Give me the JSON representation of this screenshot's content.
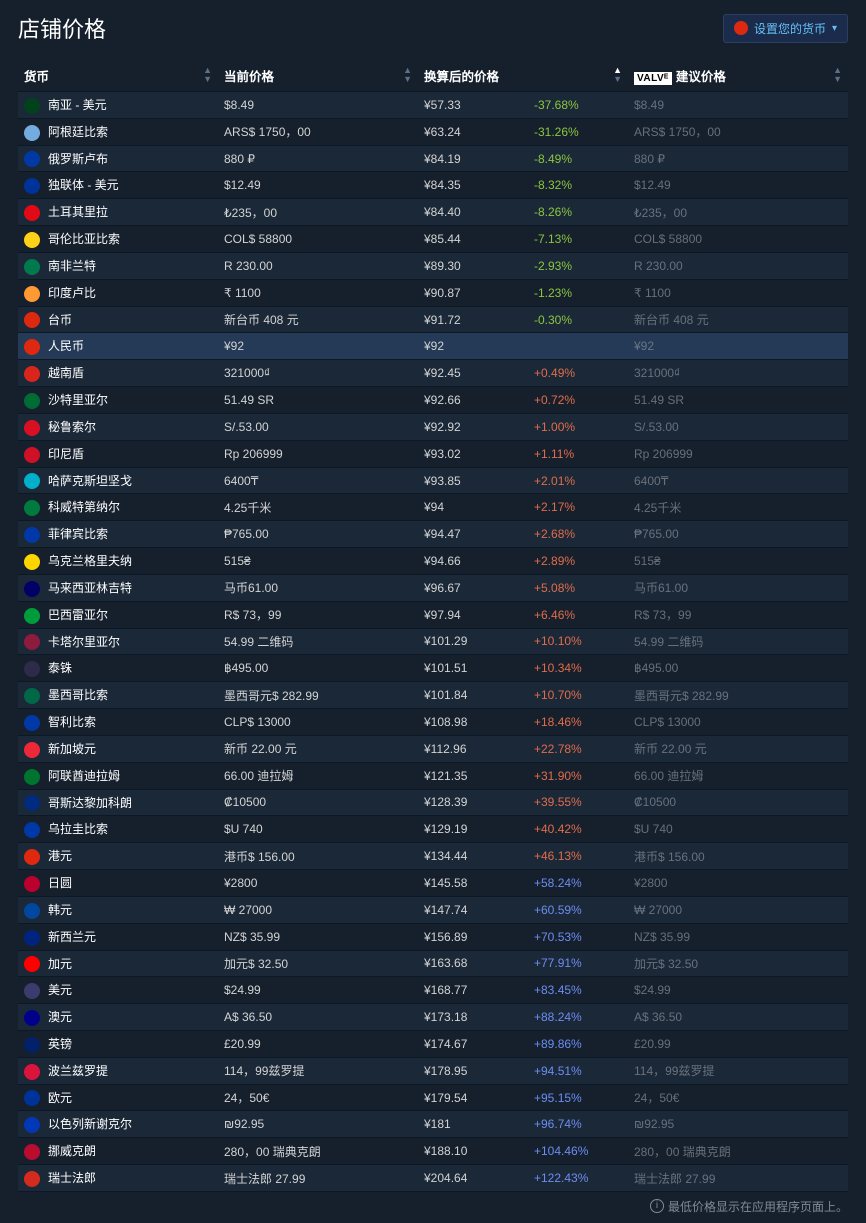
{
  "title": "店铺价格",
  "setCurrencyBtn": "设置您的货币",
  "columns": {
    "currency": "货币",
    "current": "当前价格",
    "converted": "换算后的价格",
    "suggestedPrefix": "VALVᴱ",
    "suggested": "建议价格"
  },
  "footer": "最低价格显示在应用程序页面上。",
  "colors": {
    "neg": "#8bc53f",
    "pos_low": "#e06c4a",
    "pos_mid": "#e06c4a",
    "pos_high": "#6b8df2"
  },
  "rows": [
    {
      "flag": "#01411c",
      "name": "南亚 - 美元",
      "current": "$8.49",
      "converted": "¥57.33",
      "pct": "-37.68%",
      "pctColor": "neg",
      "suggested": "$8.49"
    },
    {
      "flag": "#74acdf",
      "name": "阿根廷比索",
      "current": "ARS$ 1750，00",
      "converted": "¥63.24",
      "pct": "-31.26%",
      "pctColor": "neg",
      "suggested": "ARS$ 1750，00"
    },
    {
      "flag": "#0039a6",
      "name": "俄罗斯卢布",
      "current": "880 ₽",
      "converted": "¥84.19",
      "pct": "-8.49%",
      "pctColor": "neg",
      "suggested": "880 ₽"
    },
    {
      "flag": "#003399",
      "name": "独联体 - 美元",
      "current": "$12.49",
      "converted": "¥84.35",
      "pct": "-8.32%",
      "pctColor": "neg",
      "suggested": "$12.49"
    },
    {
      "flag": "#e30a17",
      "name": "土耳其里拉",
      "current": "₺235，00",
      "converted": "¥84.40",
      "pct": "-8.26%",
      "pctColor": "neg",
      "suggested": "₺235，00"
    },
    {
      "flag": "#fcd116",
      "name": "哥伦比亚比索",
      "current": "COL$ 58800",
      "converted": "¥85.44",
      "pct": "-7.13%",
      "pctColor": "neg",
      "suggested": "COL$ 58800"
    },
    {
      "flag": "#007a4d",
      "name": "南非兰特",
      "current": "R 230.00",
      "converted": "¥89.30",
      "pct": "-2.93%",
      "pctColor": "neg",
      "suggested": "R 230.00"
    },
    {
      "flag": "#ff9933",
      "name": "印度卢比",
      "current": "₹ 1100",
      "converted": "¥90.87",
      "pct": "-1.23%",
      "pctColor": "neg",
      "suggested": "₹ 1100"
    },
    {
      "flag": "#de2910",
      "name": "台币",
      "current": "新台币 408 元",
      "converted": "¥91.72",
      "pct": "-0.30%",
      "pctColor": "neg",
      "suggested": "新台币 408 元"
    },
    {
      "flag": "#de2910",
      "name": "人民币",
      "current": "¥92",
      "converted": "¥92",
      "pct": "",
      "pctColor": "",
      "suggested": "¥92",
      "highlight": true
    },
    {
      "flag": "#da251d",
      "name": "越南盾",
      "current": "321000₫",
      "converted": "¥92.45",
      "pct": "+0.49%",
      "pctColor": "pos_low",
      "suggested": "321000₫"
    },
    {
      "flag": "#006c35",
      "name": "沙特里亚尔",
      "current": "51.49 SR",
      "converted": "¥92.66",
      "pct": "+0.72%",
      "pctColor": "pos_low",
      "suggested": "51.49 SR"
    },
    {
      "flag": "#d91023",
      "name": "秘鲁索尔",
      "current": "S/.53.00",
      "converted": "¥92.92",
      "pct": "+1.00%",
      "pctColor": "pos_low",
      "suggested": "S/.53.00"
    },
    {
      "flag": "#ce1126",
      "name": "印尼盾",
      "current": "Rp 206999",
      "converted": "¥93.02",
      "pct": "+1.11%",
      "pctColor": "pos_low",
      "suggested": "Rp 206999"
    },
    {
      "flag": "#00afca",
      "name": "哈萨克斯坦坚戈",
      "current": "6400₸",
      "converted": "¥93.85",
      "pct": "+2.01%",
      "pctColor": "pos_low",
      "suggested": "6400₸"
    },
    {
      "flag": "#007a3d",
      "name": "科威特第纳尔",
      "current": "4.25千米",
      "converted": "¥94",
      "pct": "+2.17%",
      "pctColor": "pos_low",
      "suggested": "4.25千米"
    },
    {
      "flag": "#0038a8",
      "name": "菲律宾比索",
      "current": "₱765.00",
      "converted": "¥94.47",
      "pct": "+2.68%",
      "pctColor": "pos_low",
      "suggested": "₱765.00"
    },
    {
      "flag": "#ffd500",
      "name": "乌克兰格里夫纳",
      "current": "515₴",
      "converted": "¥94.66",
      "pct": "+2.89%",
      "pctColor": "pos_low",
      "suggested": "515₴"
    },
    {
      "flag": "#010066",
      "name": "马来西亚林吉特",
      "current": "马币61.00",
      "converted": "¥96.67",
      "pct": "+5.08%",
      "pctColor": "pos_mid",
      "suggested": "马币61.00"
    },
    {
      "flag": "#009c3b",
      "name": "巴西雷亚尔",
      "current": "R$ 73，99",
      "converted": "¥97.94",
      "pct": "+6.46%",
      "pctColor": "pos_mid",
      "suggested": "R$ 73，99"
    },
    {
      "flag": "#8d1b3d",
      "name": "卡塔尔里亚尔",
      "current": "54.99 二维码",
      "converted": "¥101.29",
      "pct": "+10.10%",
      "pctColor": "pos_mid",
      "suggested": "54.99 二维码"
    },
    {
      "flag": "#2d2a4a",
      "name": "泰铢",
      "current": "฿495.00",
      "converted": "¥101.51",
      "pct": "+10.34%",
      "pctColor": "pos_mid",
      "suggested": "฿495.00"
    },
    {
      "flag": "#006847",
      "name": "墨西哥比索",
      "current": "墨西哥元$ 282.99",
      "converted": "¥101.84",
      "pct": "+10.70%",
      "pctColor": "pos_mid",
      "suggested": "墨西哥元$ 282.99"
    },
    {
      "flag": "#0039a6",
      "name": "智利比索",
      "current": "CLP$ 13000",
      "converted": "¥108.98",
      "pct": "+18.46%",
      "pctColor": "pos_mid",
      "suggested": "CLP$ 13000"
    },
    {
      "flag": "#ed2939",
      "name": "新加坡元",
      "current": "新币 22.00 元",
      "converted": "¥112.96",
      "pct": "+22.78%",
      "pctColor": "pos_mid",
      "suggested": "新币 22.00 元"
    },
    {
      "flag": "#00732f",
      "name": "阿联酋迪拉姆",
      "current": "66.00 迪拉姆",
      "converted": "¥121.35",
      "pct": "+31.90%",
      "pctColor": "pos_mid",
      "suggested": "66.00 迪拉姆"
    },
    {
      "flag": "#002b7f",
      "name": "哥斯达黎加科朗",
      "current": "₡10500",
      "converted": "¥128.39",
      "pct": "+39.55%",
      "pctColor": "pos_mid",
      "suggested": "₡10500"
    },
    {
      "flag": "#0038a8",
      "name": "乌拉圭比索",
      "current": "$U 740",
      "converted": "¥129.19",
      "pct": "+40.42%",
      "pctColor": "pos_mid",
      "suggested": "$U 740"
    },
    {
      "flag": "#de2910",
      "name": "港元",
      "current": "港币$ 156.00",
      "converted": "¥134.44",
      "pct": "+46.13%",
      "pctColor": "pos_mid",
      "suggested": "港币$ 156.00"
    },
    {
      "flag": "#bc002d",
      "name": "日圆",
      "current": "¥2800",
      "converted": "¥145.58",
      "pct": "+58.24%",
      "pctColor": "pos_high",
      "suggested": "¥2800"
    },
    {
      "flag": "#0047a0",
      "name": "韩元",
      "current": "₩ 27000",
      "converted": "¥147.74",
      "pct": "+60.59%",
      "pctColor": "pos_high",
      "suggested": "₩ 27000"
    },
    {
      "flag": "#00247d",
      "name": "新西兰元",
      "current": "NZ$ 35.99",
      "converted": "¥156.89",
      "pct": "+70.53%",
      "pctColor": "pos_high",
      "suggested": "NZ$ 35.99"
    },
    {
      "flag": "#ff0000",
      "name": "加元",
      "current": "加元$ 32.50",
      "converted": "¥163.68",
      "pct": "+77.91%",
      "pctColor": "pos_high",
      "suggested": "加元$ 32.50"
    },
    {
      "flag": "#3c3b6e",
      "name": "美元",
      "current": "$24.99",
      "converted": "¥168.77",
      "pct": "+83.45%",
      "pctColor": "pos_high",
      "suggested": "$24.99"
    },
    {
      "flag": "#00008b",
      "name": "澳元",
      "current": "A$ 36.50",
      "converted": "¥173.18",
      "pct": "+88.24%",
      "pctColor": "pos_high",
      "suggested": "A$ 36.50"
    },
    {
      "flag": "#012169",
      "name": "英镑",
      "current": "£20.99",
      "converted": "¥174.67",
      "pct": "+89.86%",
      "pctColor": "pos_high",
      "suggested": "£20.99"
    },
    {
      "flag": "#dc143c",
      "name": "波兰兹罗提",
      "current": "114，99兹罗提",
      "converted": "¥178.95",
      "pct": "+94.51%",
      "pctColor": "pos_high",
      "suggested": "114，99兹罗提"
    },
    {
      "flag": "#003399",
      "name": "欧元",
      "current": "24，50€",
      "converted": "¥179.54",
      "pct": "+95.15%",
      "pctColor": "pos_high",
      "suggested": "24，50€"
    },
    {
      "flag": "#0038b8",
      "name": "以色列新谢克尔",
      "current": "₪92.95",
      "converted": "¥181",
      "pct": "+96.74%",
      "pctColor": "pos_high",
      "suggested": "₪92.95"
    },
    {
      "flag": "#ba0c2f",
      "name": "挪威克朗",
      "current": "280，00 瑞典克朗",
      "converted": "¥188.10",
      "pct": "+104.46%",
      "pctColor": "pos_high",
      "suggested": "280，00 瑞典克朗"
    },
    {
      "flag": "#d52b1e",
      "name": "瑞士法郎",
      "current": "瑞士法郎 27.99",
      "converted": "¥204.64",
      "pct": "+122.43%",
      "pctColor": "pos_high",
      "suggested": "瑞士法郎 27.99"
    }
  ]
}
